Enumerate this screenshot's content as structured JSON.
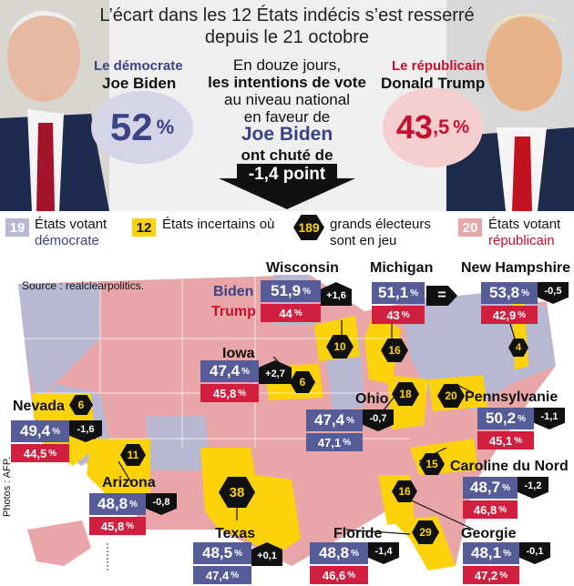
{
  "header": {
    "title_line1": "L’écart dans les 12 États indécis s’est resserré",
    "title_line2": "depuis le 21 octobre",
    "biden": {
      "party": "Le démocrate",
      "name": "Joe Biden",
      "pct_int": "52",
      "pct_unit": "%"
    },
    "trump": {
      "party": "Le républicain",
      "name": "Donald Trump",
      "pct_int": "43",
      "pct_dec": ",5",
      "pct_unit": "%"
    },
    "middle": {
      "l1": "En douze jours,",
      "l2": "les intentions de vote",
      "l3": "au niveau national",
      "l4": "en faveur de",
      "l5": "Joe Biden",
      "l6": "ont chuté de",
      "l7": "-1,4 point"
    }
  },
  "legend": {
    "dem_count": "19",
    "dem_label1": "États votant",
    "dem_label2": "démocrate",
    "swing_count": "12",
    "swing_label": "États incertains où",
    "electors": "189",
    "electors_label1": "grands électeurs",
    "electors_label2": "sont en jeu",
    "rep_count": "20",
    "rep_label1": "États votant",
    "rep_label2": "républicain"
  },
  "map": {
    "source": "Source : realclearpolitics.",
    "photos": "Photos : AFP.",
    "biden_label": "Biden",
    "trump_label": "Trump",
    "colors": {
      "dem": "#b9b8d3",
      "rep": "#e8a6a9",
      "swing": "#fcd20a",
      "dem_box": "#565c97",
      "rep_box": "#d11f40"
    },
    "states": {
      "wisconsin": {
        "name": "Wisconsin",
        "biden": "51,9",
        "trump": "44",
        "delta": "+1,6",
        "ev": "10"
      },
      "michigan": {
        "name": "Michigan",
        "biden": "51,1",
        "trump": "43",
        "delta": "=",
        "ev": "16"
      },
      "newhampshire": {
        "name": "New Hampshire",
        "biden": "53,8",
        "trump": "42,9",
        "delta": "-0,5",
        "ev": "4"
      },
      "iowa": {
        "name": "Iowa",
        "biden": "47,4",
        "trump": "45,8",
        "delta": "+2,7",
        "ev": "6"
      },
      "nevada": {
        "name": "Nevada",
        "biden": "49,4",
        "trump": "44,5",
        "delta": "-1,6",
        "ev": "6"
      },
      "ohio": {
        "name": "Ohio",
        "biden": "47,4",
        "trump": "47,1",
        "delta": "-0,7",
        "ev": "18"
      },
      "pennsylvanie": {
        "name": "Pennsylvanie",
        "biden": "50,2",
        "trump": "45,1",
        "delta": "-1,1",
        "ev": "20"
      },
      "arizona": {
        "name": "Arizona",
        "biden": "48,8",
        "trump": "45,8",
        "delta": "-0,8",
        "ev": "11"
      },
      "caroline": {
        "name": "Caroline du Nord",
        "biden": "48,7",
        "trump": "46,8",
        "delta": "-1,2",
        "ev": "15"
      },
      "texas": {
        "name": "Texas",
        "biden": "48,5",
        "trump": "47,4",
        "delta": "+0,1",
        "ev": "38"
      },
      "floride": {
        "name": "Floride",
        "biden": "48,8",
        "trump": "46,6",
        "delta": "-1,4",
        "ev": "29"
      },
      "georgie": {
        "name": "Georgie",
        "biden": "48,1",
        "trump": "47,2",
        "delta": "-0,1",
        "ev": "16"
      }
    },
    "pct": "%"
  }
}
